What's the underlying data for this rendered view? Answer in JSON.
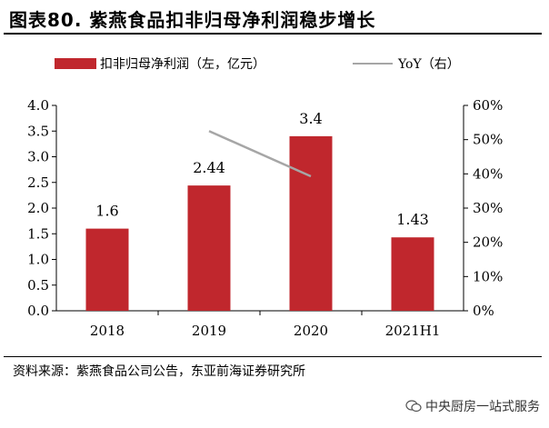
{
  "header": {
    "title": "图表80. 紫燕食品扣非归母净利润稳步增长"
  },
  "footer": {
    "source": "资料来源：紫燕食品公司公告，东亚前海证券研究所",
    "watermark": "中央厨房一站式服务"
  },
  "colors": {
    "bar": "#c0272d",
    "line": "#a6a6a6",
    "axis": "#000000"
  },
  "icons": {
    "watermark": "wechat-icon"
  },
  "chart_data": {
    "type": "bar",
    "categories": [
      "2018",
      "2019",
      "2020",
      "2021H1"
    ],
    "series": [
      {
        "name": "扣非归母净利润（左，亿元）",
        "type": "bar",
        "axis": "left",
        "values": [
          1.6,
          2.44,
          3.4,
          1.43
        ],
        "labels": [
          "1.6",
          "2.44",
          "3.4",
          "1.43"
        ]
      },
      {
        "name": "YoY（右）",
        "type": "line",
        "axis": "right",
        "values": [
          null,
          52.5,
          39.3,
          null
        ]
      }
    ],
    "ylim_left": [
      0,
      4
    ],
    "ytick_left": [
      "0.0",
      "0.5",
      "1.0",
      "1.5",
      "2.0",
      "2.5",
      "3.0",
      "3.5",
      "4.0"
    ],
    "ylim_right": [
      0,
      60
    ],
    "ytick_right": [
      "0%",
      "10%",
      "20%",
      "30%",
      "40%",
      "50%",
      "60%"
    ],
    "legend_position": "top",
    "grid": false
  }
}
